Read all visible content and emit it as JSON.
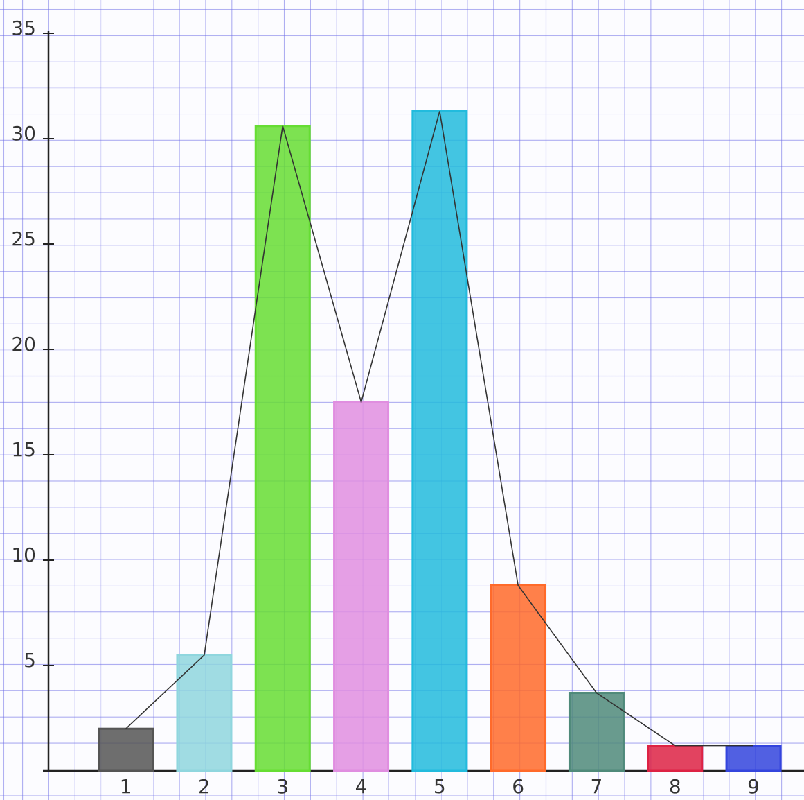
{
  "chart_data": {
    "type": "bar",
    "categories": [
      "1",
      "2",
      "3",
      "4",
      "5",
      "6",
      "7",
      "8",
      "9"
    ],
    "values": [
      2.0,
      5.5,
      30.6,
      17.5,
      31.3,
      8.8,
      3.7,
      1.2,
      1.2
    ],
    "colors": [
      "#555555",
      "#8fd6de",
      "#66dd33",
      "#e08ee0",
      "#22bbdd",
      "#ff6a2a",
      "#4f8a7a",
      "#dd2244",
      "#3344dd"
    ],
    "line": true,
    "ylim": [
      0,
      35
    ],
    "yticks": [
      5,
      10,
      15,
      20,
      25,
      30,
      35
    ]
  }
}
